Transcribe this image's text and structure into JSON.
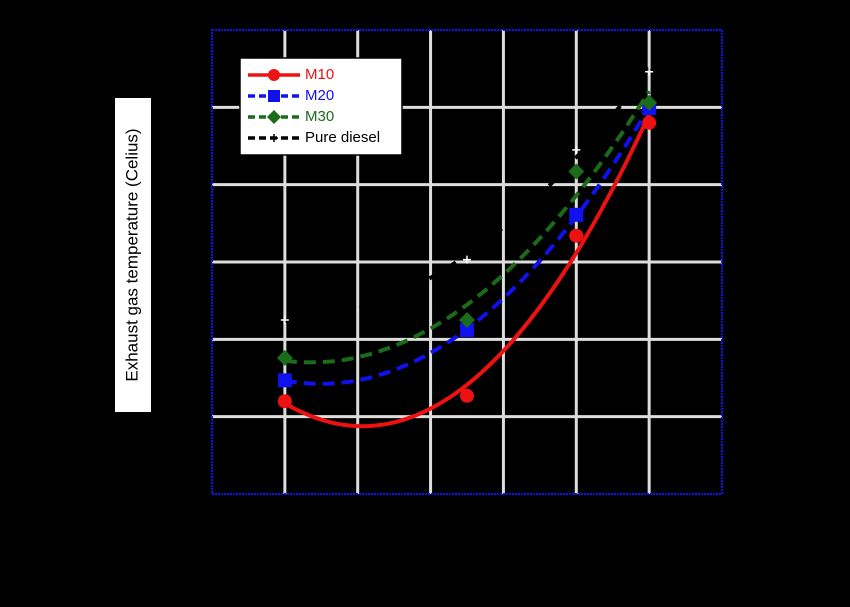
{
  "chart_data": {
    "type": "line",
    "y_label": "Exhaust gas temperature (Celius)",
    "xlim": [
      0,
      7
    ],
    "xticks": [
      1,
      2,
      3,
      4,
      5,
      6
    ],
    "ylim": [
      0,
      6
    ],
    "yticks": [
      1,
      2,
      3,
      4,
      5
    ],
    "grid": true,
    "legend": "upper-left",
    "x": [
      1,
      3.5,
      5,
      6
    ],
    "series": [
      {
        "name": "M10",
        "color": "#ee1111",
        "marker": "circle",
        "dash": false,
        "values": [
          1.2,
          1.27,
          3.34,
          4.8
        ]
      },
      {
        "name": "M20",
        "color": "#1111ee",
        "marker": "square",
        "dash": true,
        "values": [
          1.47,
          2.12,
          3.61,
          4.99
        ]
      },
      {
        "name": "M30",
        "color": "#1a6b1a",
        "marker": "diamond",
        "dash": true,
        "values": [
          1.76,
          2.25,
          4.17,
          5.06
        ]
      },
      {
        "name": "Pure diesel",
        "color": "#000000",
        "marker": "plus",
        "dash": true,
        "values": [
          2.25,
          3.03,
          4.45,
          5.46
        ]
      }
    ]
  }
}
